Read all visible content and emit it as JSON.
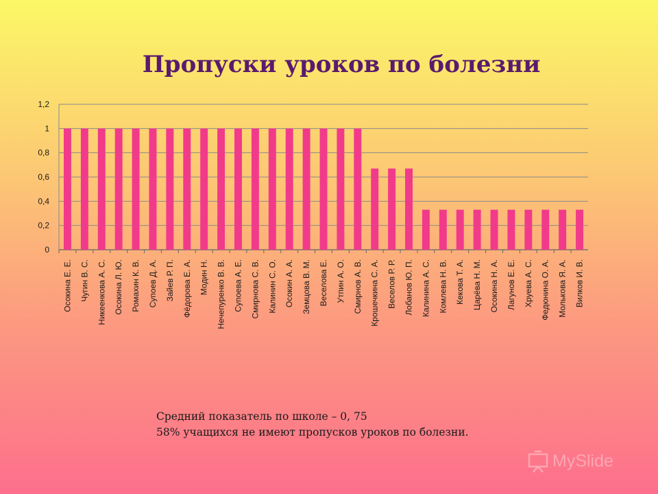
{
  "title": "Пропуски уроков по болезни",
  "chart_data": {
    "type": "bar",
    "title": "Пропуски уроков по болезни",
    "ylim": [
      0,
      1.2
    ],
    "yticks": [
      "0",
      "0,2",
      "0,4",
      "0,6",
      "0,8",
      "1",
      "1,2"
    ],
    "grid": true,
    "bar_color": "#f23a8a",
    "categories": [
      "Осокина Е. Е.",
      "Чугин В. С.",
      "Никеенкова А. С.",
      "Осокина Л. Ю.",
      "Ромахин К. В.",
      "Супоев Д. А.",
      "Зайев Р. П.",
      "Фёдорова Е. А.",
      "Модин Н.",
      "Нечепуренко В. В.",
      "Супоева А. Е.",
      "Смирнова С. В.",
      "Калинин С. О.",
      "Осокин А. А.",
      "Земцова В. М.",
      "Веселова Е.",
      "Утпин А. О.",
      "Смирнов А. В.",
      "Крошечкина С. А.",
      "Веселов Р. Р.",
      "Лобанов Ю. П.",
      "Калинина А. С.",
      "Комлева Н. В.",
      "Кекова Т. А.",
      "Царёва Н. М.",
      "Осокина Н. А.",
      "Лагунов Е. Е.",
      "Хруева А. С.",
      "Федюнина О. А.",
      "Молькова Я. А.",
      "Вилков И. В."
    ],
    "values": [
      1,
      1,
      1,
      1,
      1,
      1,
      1,
      1,
      1,
      1,
      1,
      1,
      1,
      1,
      1,
      1,
      1,
      1,
      0.67,
      0.67,
      0.67,
      0.33,
      0.33,
      0.33,
      0.33,
      0.33,
      0.33,
      0.33,
      0.33,
      0.33,
      0.33
    ]
  },
  "notes": {
    "line1": "Средний показатель по школе – 0, 75",
    "line2": "58% учащихся не имеют пропусков уроков по болезни."
  },
  "watermark": {
    "text": "MySlide",
    "icon": "presentation-board-icon"
  }
}
